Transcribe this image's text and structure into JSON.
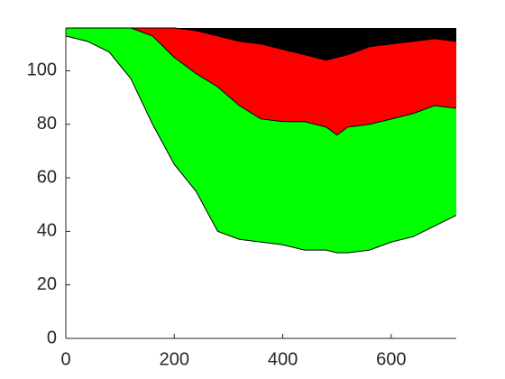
{
  "chart_data": {
    "type": "area",
    "x": [
      0,
      40,
      80,
      120,
      160,
      200,
      240,
      280,
      320,
      360,
      400,
      440,
      480,
      500,
      520,
      560,
      600,
      640,
      680,
      720
    ],
    "series": [
      {
        "color": "#00ff00",
        "values": [
          113,
          111,
          107,
          97,
          80,
          65,
          55,
          40,
          37,
          36,
          35,
          33,
          33,
          32,
          32,
          33,
          36,
          38,
          42,
          46
        ]
      },
      {
        "color": "#ff0000",
        "values": [
          116,
          116,
          116,
          116,
          113,
          105,
          99,
          94,
          87,
          82,
          81,
          81,
          79,
          76,
          79,
          80,
          82,
          84,
          87,
          86
        ]
      },
      {
        "color": "#000000",
        "values": [
          116,
          116,
          116,
          116,
          116,
          116,
          115,
          113,
          111,
          110,
          108,
          106,
          104,
          105,
          106,
          109,
          110,
          111,
          112,
          111
        ]
      }
    ],
    "xlim": [
      0,
      720
    ],
    "ylim": [
      0,
      116
    ],
    "xticks": [
      0,
      200,
      400,
      600
    ],
    "yticks": [
      0,
      20,
      40,
      60,
      80,
      100
    ]
  }
}
